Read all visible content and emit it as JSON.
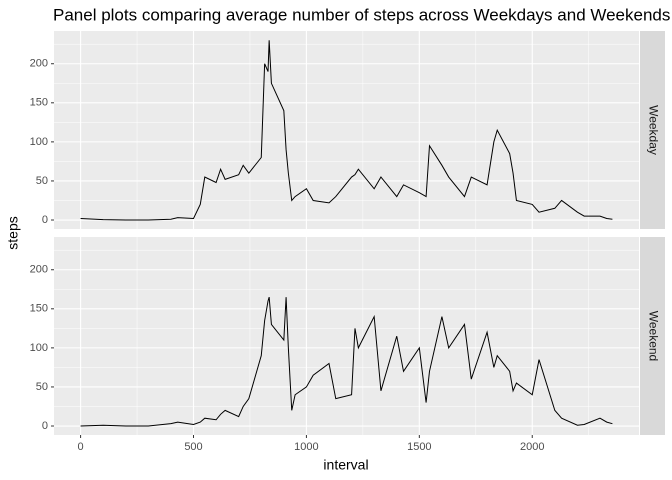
{
  "chart_data": {
    "type": "line",
    "title": "Panel plots comparing average number of steps  across Weekdays and Weekends",
    "x_label": "interval",
    "y_label": "steps",
    "xlim": [
      -117.75,
      2472.75
    ],
    "xticks": [
      0,
      500,
      1000,
      1500,
      2000
    ],
    "xminorticks": [
      250,
      750,
      1250,
      1750,
      2250
    ],
    "ylim": [
      -11.5,
      241.9
    ],
    "yticks": [
      0,
      50,
      100,
      150,
      200
    ],
    "yminorticks": [
      25,
      75,
      125,
      175,
      225
    ],
    "grid": true,
    "x": [
      0,
      100,
      200,
      300,
      400,
      430,
      500,
      530,
      550,
      600,
      620,
      640,
      700,
      720,
      745,
      800,
      815,
      830,
      835,
      845,
      900,
      910,
      920,
      935,
      950,
      1000,
      1030,
      1100,
      1130,
      1200,
      1215,
      1230,
      1300,
      1330,
      1400,
      1430,
      1500,
      1530,
      1545,
      1600,
      1630,
      1700,
      1730,
      1800,
      1830,
      1845,
      1900,
      1915,
      1930,
      2000,
      2030,
      2100,
      2130,
      2200,
      2230,
      2300,
      2330,
      2355
    ],
    "series": [
      {
        "name": "Weekday",
        "color": "#000000",
        "values": [
          2,
          0.5,
          0,
          0,
          1,
          3,
          2,
          20,
          55,
          48,
          65,
          52,
          58,
          70,
          60,
          80,
          200,
          190,
          230,
          175,
          140,
          90,
          60,
          25,
          30,
          40,
          25,
          22,
          30,
          55,
          58,
          65,
          40,
          55,
          30,
          45,
          35,
          30,
          95,
          70,
          55,
          30,
          55,
          45,
          100,
          115,
          85,
          60,
          25,
          20,
          10,
          15,
          25,
          10,
          5,
          5,
          2,
          1
        ]
      },
      {
        "name": "Weekend",
        "color": "#000000",
        "values": [
          0,
          1,
          0,
          0,
          3,
          5,
          2,
          5,
          10,
          8,
          15,
          20,
          12,
          25,
          35,
          90,
          135,
          160,
          165,
          130,
          110,
          165,
          100,
          20,
          40,
          50,
          65,
          80,
          35,
          40,
          125,
          100,
          140,
          45,
          115,
          70,
          100,
          30,
          70,
          140,
          100,
          130,
          60,
          120,
          75,
          90,
          70,
          45,
          55,
          40,
          85,
          20,
          10,
          1,
          2,
          10,
          5,
          3
        ]
      }
    ]
  }
}
